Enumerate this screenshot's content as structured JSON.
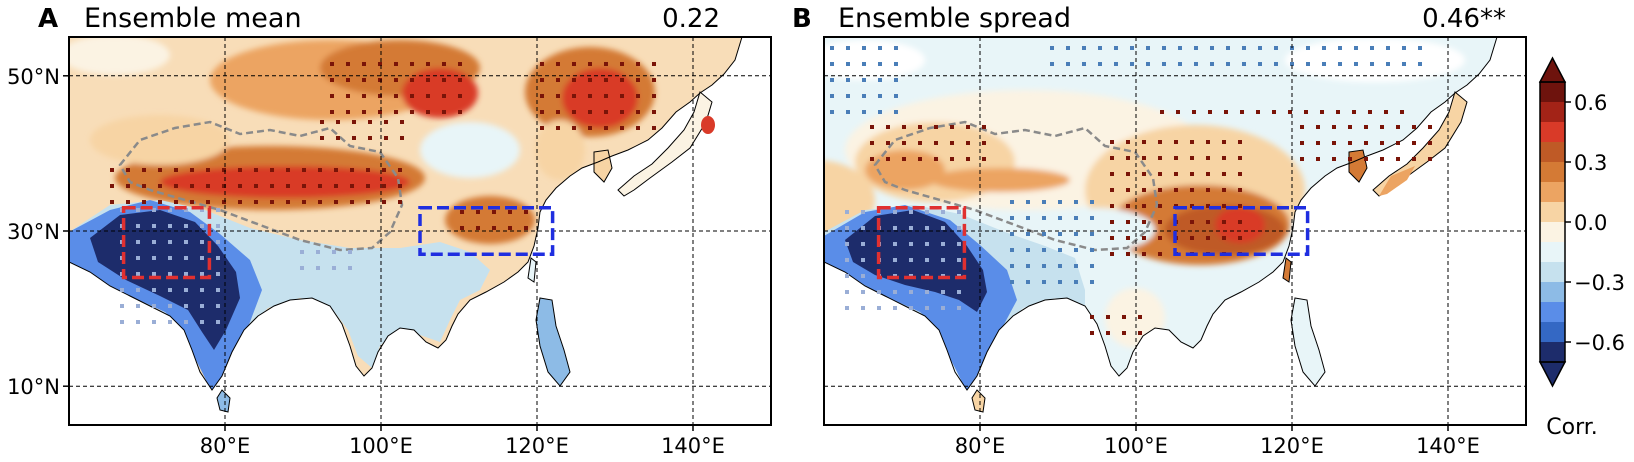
{
  "panels": [
    {
      "letter": "A",
      "title": "Ensemble mean",
      "stat": "0.22",
      "lon_ticks": [
        "80°E",
        "100°E",
        "120°E",
        "140°E"
      ],
      "lat_ticks": [
        "50°N",
        "30°N",
        "10°N"
      ]
    },
    {
      "letter": "B",
      "title": "Ensemble spread",
      "stat": "0.46**",
      "lon_ticks": [
        "80°E",
        "100°E",
        "120°E",
        "140°E"
      ],
      "lat_ticks": []
    }
  ],
  "colorbar": {
    "label": "Corr.",
    "tick_labels": [
      "0.6",
      "0.3",
      "0.0",
      "−0.3",
      "−0.6"
    ],
    "tick_values": [
      0.6,
      0.3,
      0.0,
      -0.3,
      -0.6
    ],
    "range": [
      -0.7,
      0.7
    ],
    "colors": [
      "#1d2c6b",
      "#3468c4",
      "#5a8de8",
      "#8dbbe6",
      "#c6e1ee",
      "#e8f5f8",
      "#fbf3e3",
      "#f7d4a4",
      "#eca462",
      "#d47a35",
      "#bf5a26",
      "#d93a28",
      "#a32317",
      "#6e130d"
    ]
  },
  "map": {
    "lon_range": [
      60,
      150
    ],
    "lat_range": [
      5,
      55
    ],
    "gridlines_lon": [
      80,
      100,
      120,
      140
    ],
    "gridlines_lat": [
      10,
      30,
      50
    ],
    "boxes": [
      {
        "color": "#e03030",
        "lon": [
          67,
          78
        ],
        "lat": [
          24,
          33
        ]
      },
      {
        "color": "#1f2ee0",
        "lon": [
          105,
          122
        ],
        "lat": [
          27,
          33
        ]
      }
    ],
    "colors": {
      "land": "#ffffff",
      "coast": "#000000",
      "plateau_outline": "#8a8a8a",
      "box_red": "#e03030",
      "box_blue": "#1f2ee0",
      "stipple_pos": "#7a1408",
      "stipple_neg": "#4a7eb8"
    }
  }
}
